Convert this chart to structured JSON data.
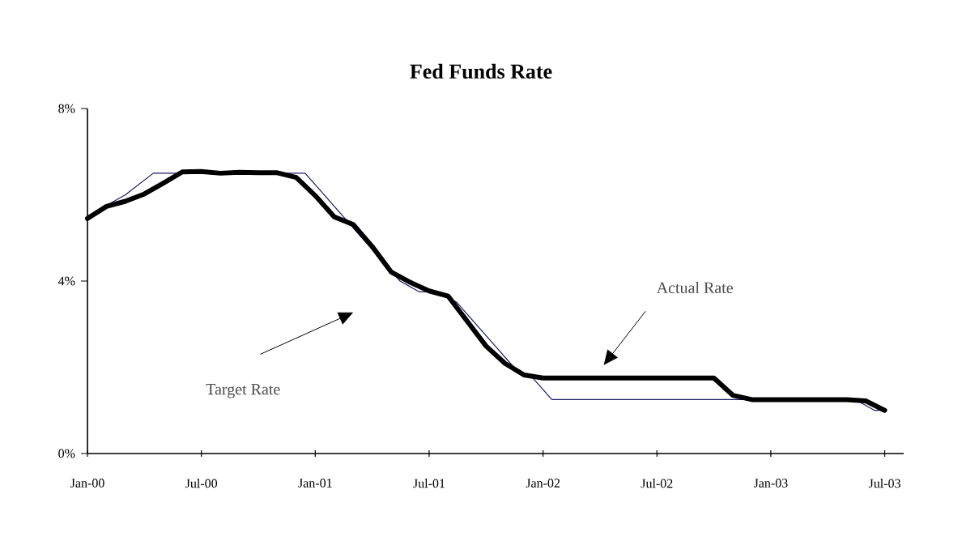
{
  "chart_data": {
    "type": "line",
    "title": "Fed Funds Rate",
    "xlim": [
      "2000-01",
      "2003-08"
    ],
    "xticks": [
      {
        "value": "2000-01",
        "label": "Jan-00"
      },
      {
        "value": "2000-07",
        "label": "Jul-00"
      },
      {
        "value": "2001-01",
        "label": "Jan-01"
      },
      {
        "value": "2001-07",
        "label": "Jul-01"
      },
      {
        "value": "2002-01",
        "label": "Jan-02"
      },
      {
        "value": "2002-07",
        "label": "Jul-02"
      },
      {
        "value": "2003-01",
        "label": "Jan-03"
      },
      {
        "value": "2003-07",
        "label": "Jul-03"
      }
    ],
    "ylim": [
      0,
      8
    ],
    "yticks": [
      {
        "value": 0,
        "label": "0%"
      },
      {
        "value": 4,
        "label": "4%"
      },
      {
        "value": 8,
        "label": "8%"
      }
    ],
    "annotations": [
      "Target Rate",
      "Actual Rate"
    ],
    "grid": false,
    "legend": false,
    "marker": "none",
    "series": [
      {
        "color": "#1a1a66",
        "x": [
          "2000-01",
          "2000-02",
          "2000-03",
          "2000-04-15",
          "2000-12-15",
          "2001-01-15",
          "2001-02-15",
          "2001-03-15",
          "2001-04-15",
          "2001-05-15",
          "2001-06-15",
          "2001-07-15",
          "2001-08-15",
          "2001-09-15",
          "2001-10-15",
          "2001-11-15",
          "2001-12-15",
          "2002-01-15",
          "2003-05-15",
          "2003-06-15",
          "2003-07"
        ],
        "values": [
          5.5,
          5.75,
          6.0,
          6.5,
          6.5,
          6.0,
          5.5,
          5.0,
          4.5,
          4.0,
          3.75,
          3.75,
          3.5,
          3.0,
          2.5,
          2.0,
          1.75,
          1.25,
          1.25,
          1.0,
          1.0
        ]
      },
      {
        "color": "#000000",
        "x": [
          "2000-01",
          "2000-02",
          "2000-03",
          "2000-04",
          "2000-05",
          "2000-06",
          "2000-07",
          "2000-08",
          "2000-09",
          "2000-10",
          "2000-11",
          "2000-12",
          "2001-01",
          "2001-02",
          "2001-03",
          "2001-04",
          "2001-05",
          "2001-06",
          "2001-07",
          "2001-08",
          "2001-09",
          "2001-10",
          "2001-11",
          "2001-12",
          "2002-01",
          "2002-02",
          "2002-03",
          "2002-04",
          "2002-05",
          "2002-06",
          "2002-07",
          "2002-08",
          "2002-09",
          "2002-10",
          "2002-11",
          "2002-12",
          "2003-01",
          "2003-02",
          "2003-03",
          "2003-04",
          "2003-05",
          "2003-06",
          "2003-07"
        ],
        "values": [
          5.45,
          5.73,
          5.85,
          6.02,
          6.27,
          6.53,
          6.54,
          6.5,
          6.52,
          6.51,
          6.51,
          6.4,
          5.98,
          5.49,
          5.31,
          4.8,
          4.21,
          3.97,
          3.77,
          3.65,
          3.07,
          2.49,
          2.09,
          1.82,
          1.75,
          1.75,
          1.75,
          1.75,
          1.75,
          1.75,
          1.75,
          1.75,
          1.75,
          1.75,
          1.35,
          1.25,
          1.25,
          1.25,
          1.25,
          1.25,
          1.25,
          1.22,
          1.0
        ]
      }
    ]
  }
}
